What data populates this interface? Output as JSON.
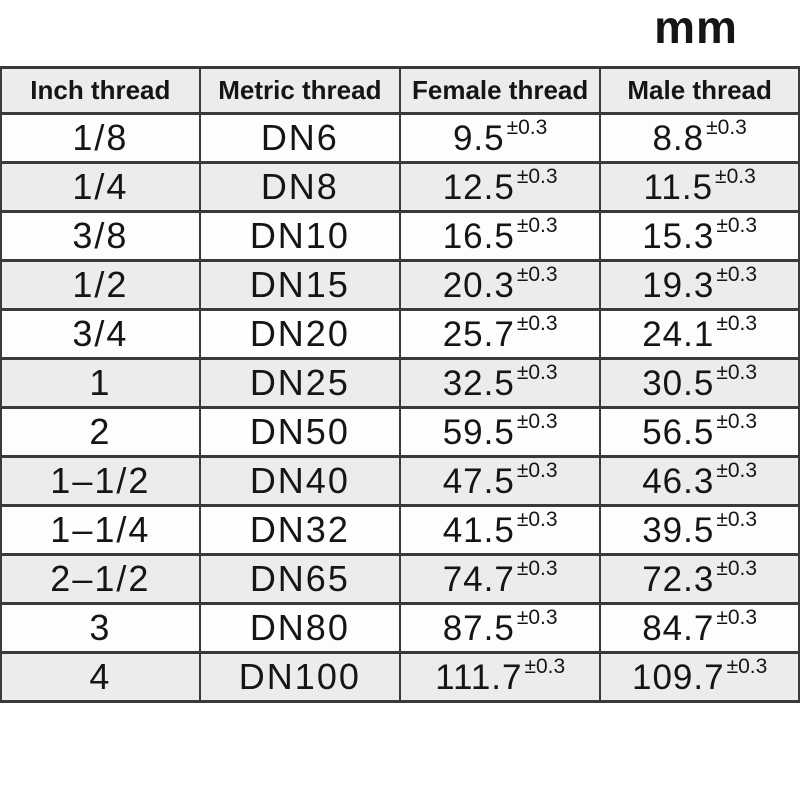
{
  "chart_data": {
    "type": "table",
    "unit": "mm",
    "columns": [
      "Inch thread",
      "Metric thread",
      "Female thread",
      "Male thread"
    ],
    "tolerance": "±0.3",
    "rows": [
      {
        "inch": "1/8",
        "metric": "DN6",
        "female": "9.5",
        "male": "8.8"
      },
      {
        "inch": "1/4",
        "metric": "DN8",
        "female": "12.5",
        "male": "11.5"
      },
      {
        "inch": "3/8",
        "metric": "DN10",
        "female": "16.5",
        "male": "15.3"
      },
      {
        "inch": "1/2",
        "metric": "DN15",
        "female": "20.3",
        "male": "19.3"
      },
      {
        "inch": "3/4",
        "metric": "DN20",
        "female": "25.7",
        "male": "24.1"
      },
      {
        "inch": "1",
        "metric": "DN25",
        "female": "32.5",
        "male": "30.5"
      },
      {
        "inch": "2",
        "metric": "DN50",
        "female": "59.5",
        "male": "56.5"
      },
      {
        "inch": "1–1/2",
        "metric": "DN40",
        "female": "47.5",
        "male": "46.3"
      },
      {
        "inch": "1–1/4",
        "metric": "DN32",
        "female": "41.5",
        "male": "39.5"
      },
      {
        "inch": "2–1/2",
        "metric": "DN65",
        "female": "74.7",
        "male": "72.3"
      },
      {
        "inch": "3",
        "metric": "DN80",
        "female": "87.5",
        "male": "84.7"
      },
      {
        "inch": "4",
        "metric": "DN100",
        "female": "111.7",
        "male": "109.7"
      }
    ]
  },
  "colors": {
    "header_bg": "#ececec",
    "row_bg": "#fdfdfd",
    "row_alt_bg": "#ececec",
    "border": "#3a3a3a",
    "text": "#151515"
  }
}
